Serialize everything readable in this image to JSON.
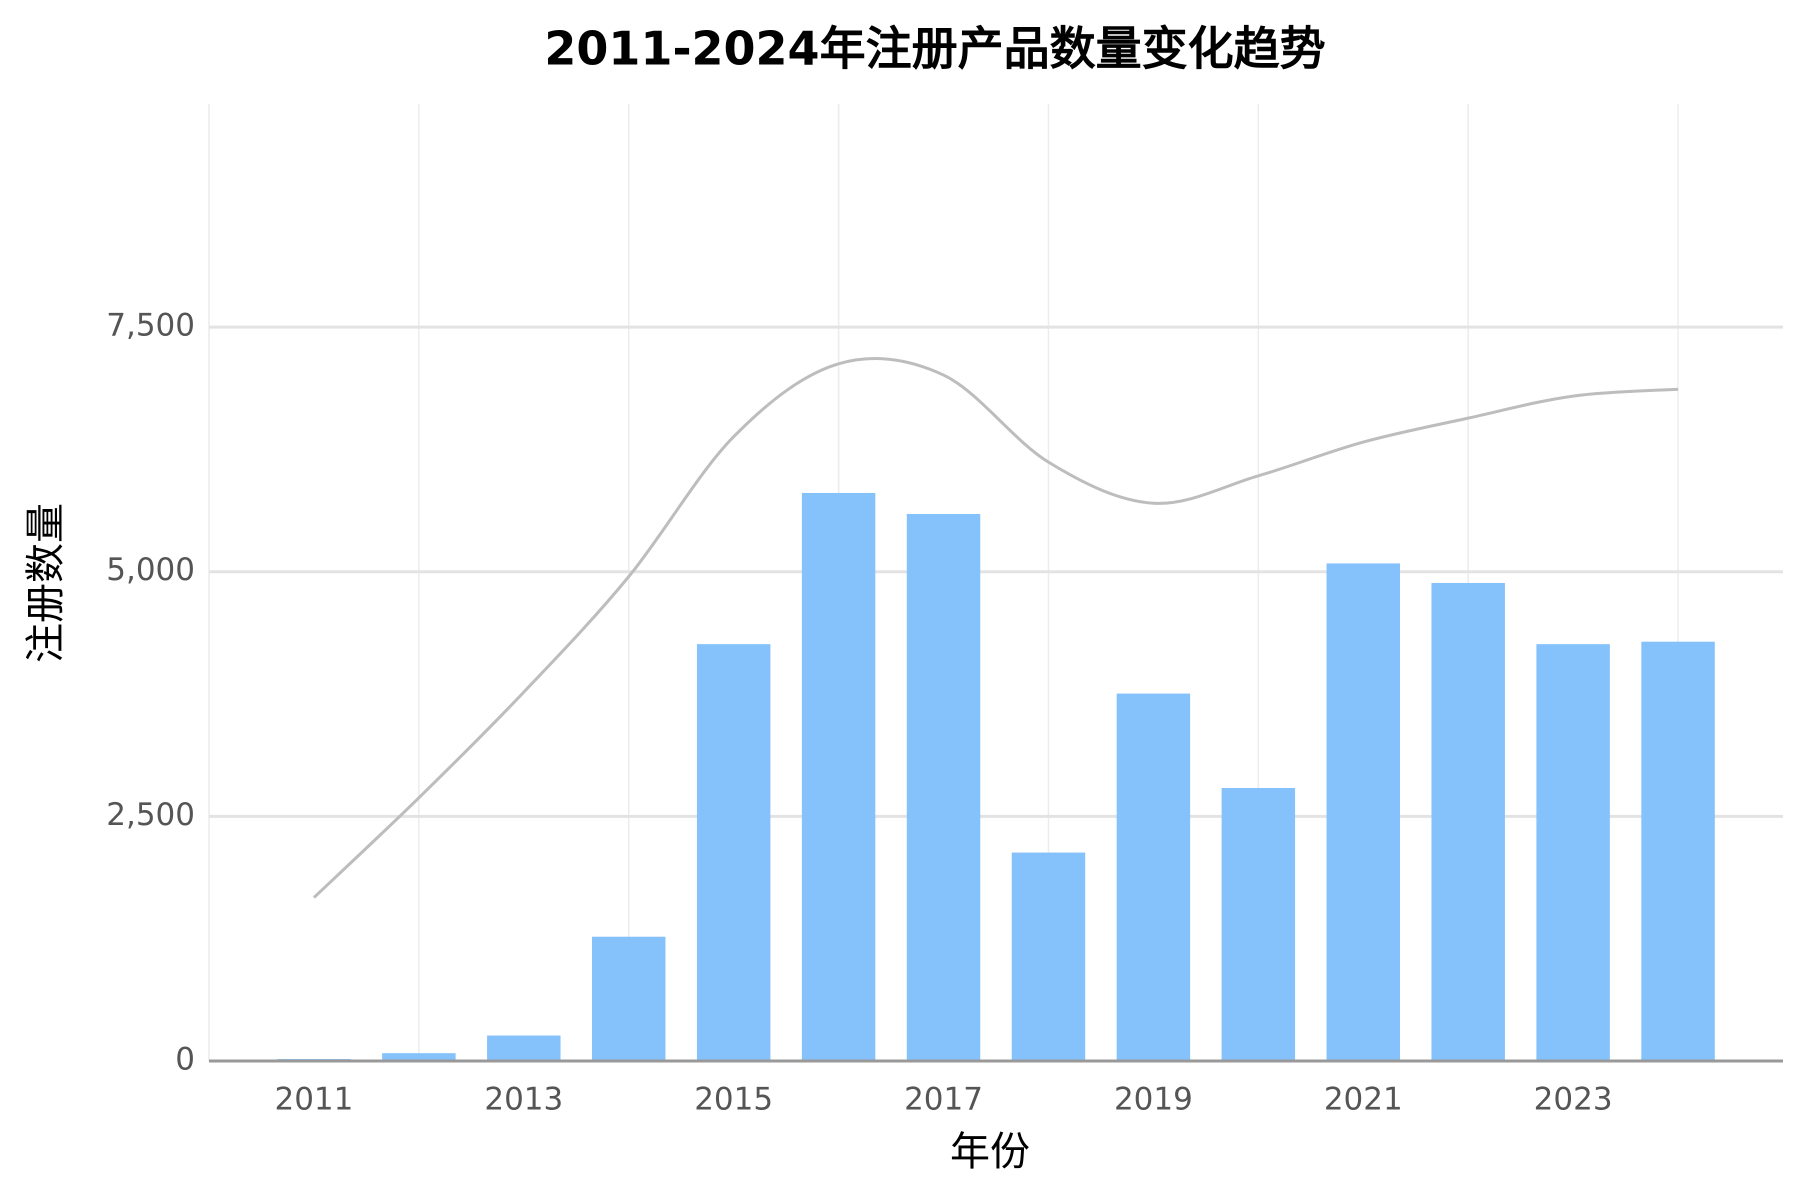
{
  "chart_data": {
    "type": "bar",
    "title": "2011-2024年注册产品数量变化趋势",
    "x_label": "年份",
    "y_label": "注册数量",
    "x": [
      2011,
      2012,
      2013,
      2014,
      2015,
      2016,
      2017,
      2018,
      2019,
      2020,
      2021,
      2022,
      2023,
      2024
    ],
    "series": [
      {
        "type": "bar",
        "color": "#85c1fb",
        "values": [
          20,
          80,
          260,
          1270,
          4260,
          5805,
          5590,
          2130,
          3755,
          2790,
          5085,
          4885,
          4260,
          4285
        ]
      },
      {
        "type": "line",
        "color": "#bdbdbd",
        "values": [
          1670,
          2690,
          3770,
          4950,
          6380,
          7125,
          7010,
          6120,
          5700,
          5980,
          6325,
          6570,
          6795,
          6865
        ]
      }
    ],
    "xlim": [
      2010,
      2025
    ],
    "xticks": [
      2011,
      2013,
      2015,
      2017,
      2019,
      2021,
      2023
    ],
    "ylim": [
      0,
      9780
    ],
    "yticks": [
      0,
      {
        "value": 2500,
        "label": "2,500"
      },
      {
        "value": 5000,
        "label": "5,000"
      },
      {
        "value": 7500,
        "label": "7,500"
      }
    ],
    "grid": true
  }
}
